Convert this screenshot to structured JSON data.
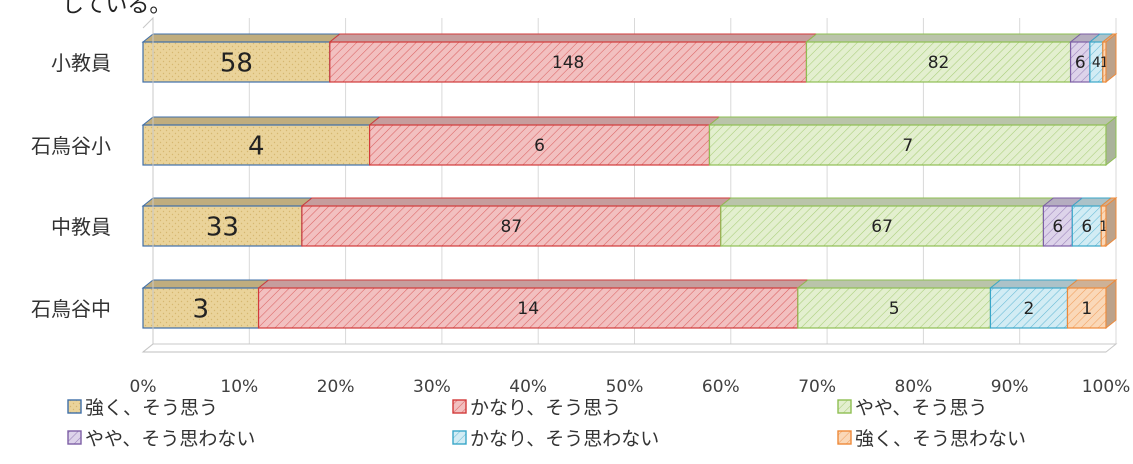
{
  "chart_data": {
    "type": "bar",
    "orientation": "horizontal",
    "stacked": "percent",
    "clipped_text": "している。",
    "categories": [
      "小教員",
      "石鳥谷小",
      "中教員",
      "石鳥谷中"
    ],
    "series": [
      {
        "name": "強く、そう思う",
        "values": [
          58,
          4,
          33,
          3
        ],
        "color": "#ead39a",
        "stroke": "#3f6fa8",
        "pattern": "dots"
      },
      {
        "name": "かなり、そう思う",
        "values": [
          148,
          6,
          87,
          14
        ],
        "color": "#f2c0c0",
        "stroke": "#d23a3a",
        "pattern": "hatch"
      },
      {
        "name": "やや、そう思う",
        "values": [
          82,
          7,
          67,
          5
        ],
        "color": "#e3efcf",
        "stroke": "#8fbf53",
        "pattern": "hatch"
      },
      {
        "name": "やや、そう思わない",
        "values": [
          6,
          0,
          6,
          0
        ],
        "color": "#ddd3ea",
        "stroke": "#7d5fa6",
        "pattern": "hatch"
      },
      {
        "name": "かなり、そう思わない",
        "values": [
          4,
          0,
          6,
          2
        ],
        "color": "#d2ecf4",
        "stroke": "#3aa7c9",
        "pattern": "hatch"
      },
      {
        "name": "強く、そう思わない",
        "values": [
          1,
          0,
          1,
          1
        ],
        "color": "#fad8b8",
        "stroke": "#ee8a3a",
        "pattern": "hatch"
      }
    ],
    "xticks": [
      "0%",
      "10%",
      "20%",
      "30%",
      "40%",
      "50%",
      "60%",
      "70%",
      "80%",
      "90%",
      "100%"
    ],
    "xlim": [
      0,
      100
    ],
    "grid": true,
    "legend_position": "bottom"
  }
}
